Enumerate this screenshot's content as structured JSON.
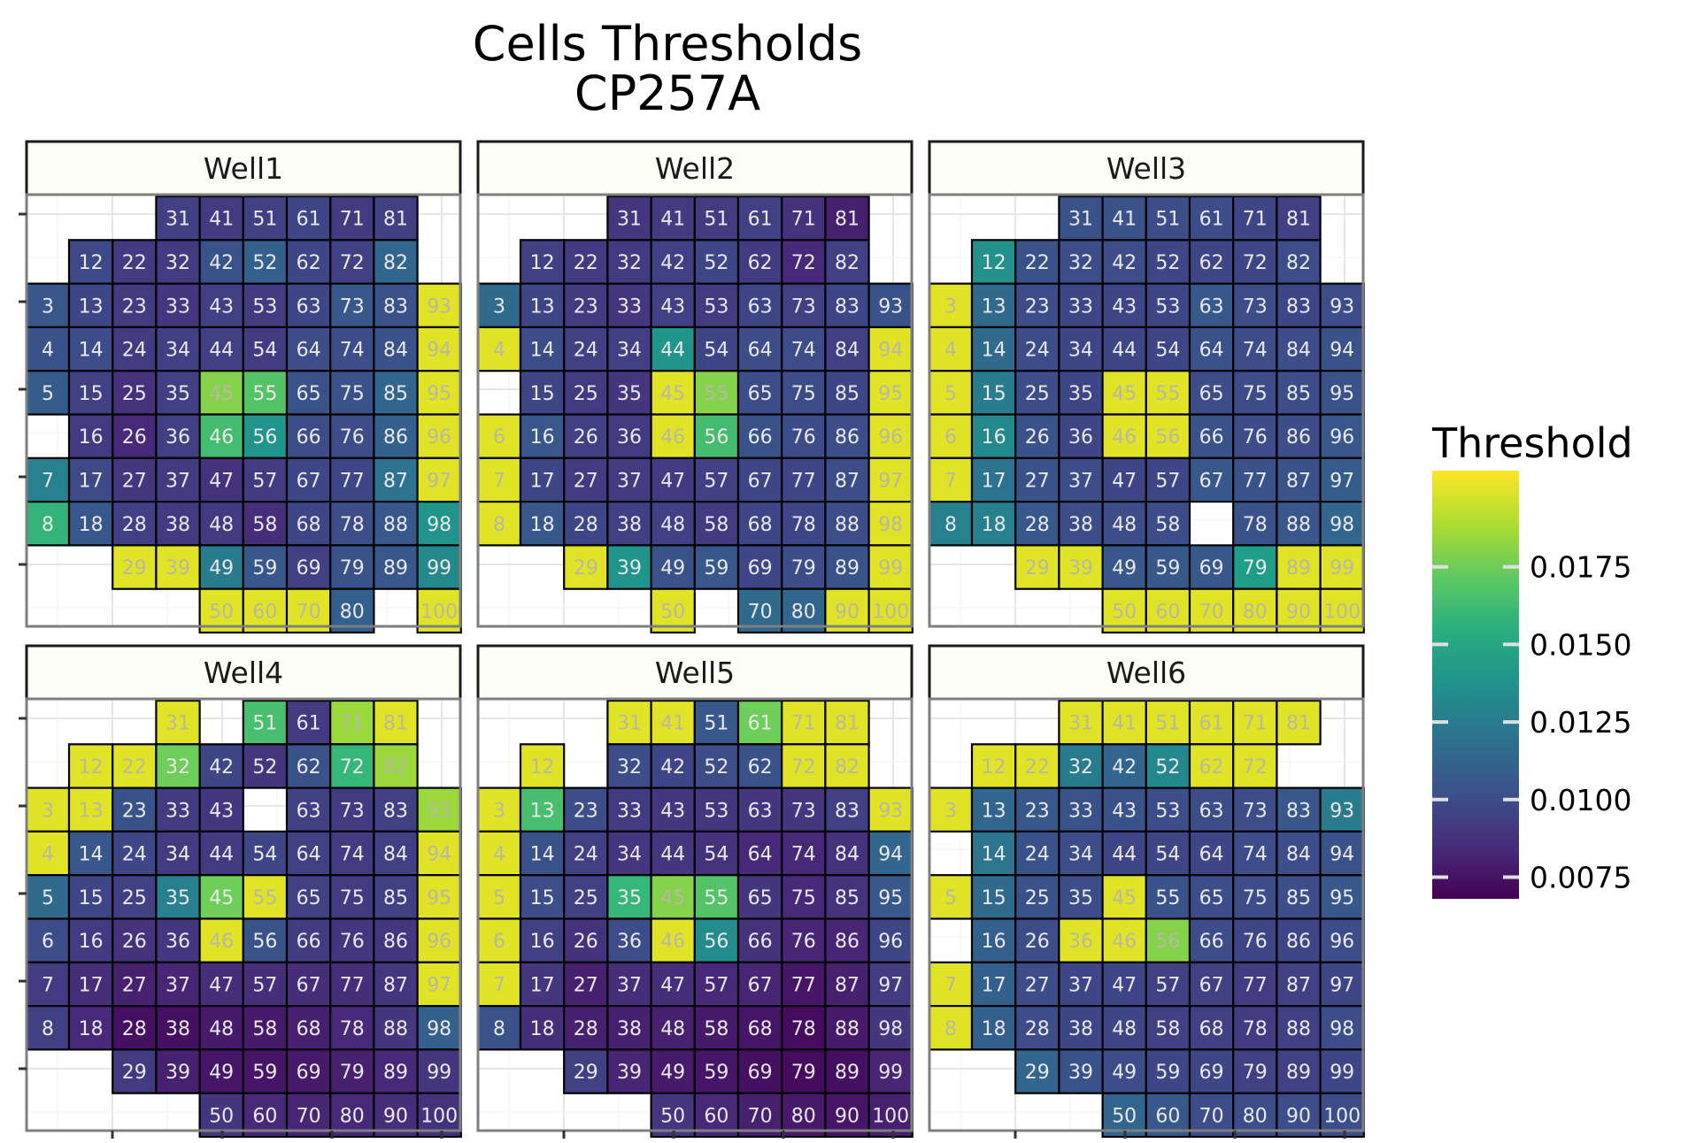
{
  "title_line1": "Cells Thresholds",
  "title_line2": "CP257A",
  "legend": {
    "title": "Threshold",
    "ticks": [
      "0.0175",
      "0.0150",
      "0.0125",
      "0.0100",
      "0.0075"
    ]
  },
  "chart_data": {
    "type": "heatmap",
    "title": "Cells Thresholds\nCP257A",
    "color_scale": "viridis",
    "color_range": [
      0.0068,
      0.0206
    ],
    "legend_title": "Threshold",
    "legend_ticks": [
      0.0075,
      0.01,
      0.0125,
      0.015,
      0.0175
    ],
    "x_range": [
      0,
      10
    ],
    "y_range": [
      1,
      10
    ],
    "facets": [
      {
        "name": "Well1",
        "rows": {
          "1": [
            null,
            0.0094,
            0.0092,
            0.0094,
            0.0097,
            0.0092,
            0.0094,
            null,
            null
          ],
          "2": [
            0.0098,
            0.0092,
            0.0092,
            0.0103,
            0.011,
            0.0097,
            0.0094,
            0.0113,
            null
          ],
          "3": [
            0.0106,
            0.0097,
            0.0092,
            0.009,
            0.0094,
            0.0092,
            0.0097,
            0.0106,
            0.0102,
            0.02
          ],
          "4": [
            0.0103,
            0.01,
            0.0092,
            0.0094,
            0.0094,
            0.0092,
            0.01,
            0.01,
            0.0103,
            0.02
          ],
          "5": [
            0.0108,
            0.0094,
            0.0088,
            0.0094,
            0.018,
            0.0168,
            0.0103,
            0.0103,
            0.0113,
            0.02
          ],
          "6": [
            null,
            0.0092,
            0.0084,
            0.0094,
            0.0164,
            0.014,
            0.01,
            0.01,
            0.011,
            0.02
          ],
          "7": [
            0.0128,
            0.0098,
            0.009,
            0.0092,
            0.0088,
            0.0092,
            0.0097,
            0.0097,
            0.012,
            0.02
          ],
          "8": [
            0.0158,
            0.0106,
            0.0094,
            0.0092,
            0.0092,
            0.0086,
            0.0097,
            0.01,
            0.0106,
            0.014
          ],
          "9": [
            null,
            0.02,
            0.02,
            0.0125,
            0.0106,
            0.0094,
            0.0103,
            0.0106,
            0.0133,
            null
          ],
          "10": [
            null,
            null,
            0.02,
            0.02,
            0.02,
            0.011,
            null,
            0.02,
            null,
            null
          ]
        }
      },
      {
        "name": "Well2",
        "rows": {
          "1": [
            null,
            0.009,
            0.0092,
            0.0092,
            0.0094,
            0.0088,
            0.008,
            null,
            null
          ],
          "2": [
            0.0094,
            0.0092,
            0.0092,
            0.0094,
            0.0097,
            0.0092,
            0.0084,
            0.0094,
            null
          ],
          "3": [
            0.0116,
            0.0097,
            0.0092,
            0.009,
            0.0094,
            0.0092,
            0.0097,
            0.0094,
            0.0097,
            0.0103
          ],
          "4": [
            0.02,
            0.01,
            0.0094,
            0.0094,
            0.014,
            0.0097,
            0.01,
            0.01,
            0.0094,
            0.02
          ],
          "5": [
            null,
            0.0097,
            0.0092,
            0.009,
            0.02,
            0.018,
            0.01,
            0.01,
            0.0097,
            0.02
          ],
          "6": [
            0.02,
            0.0106,
            0.0094,
            0.0092,
            0.02,
            0.0164,
            0.0103,
            0.01,
            0.01,
            0.02
          ],
          "7": [
            0.02,
            0.0097,
            0.0092,
            0.0092,
            0.0092,
            0.0094,
            0.0097,
            0.0097,
            0.01,
            0.02
          ],
          "8": [
            0.02,
            0.0106,
            0.0097,
            0.0094,
            0.0094,
            0.0092,
            0.0097,
            0.0097,
            0.01,
            0.02
          ],
          "9": [
            null,
            0.02,
            0.014,
            0.0103,
            0.0106,
            0.0097,
            0.01,
            0.0103,
            0.02,
            null
          ],
          "10": [
            null,
            null,
            0.02,
            null,
            0.0116,
            0.0113,
            0.02,
            0.02,
            null,
            null
          ]
        }
      },
      {
        "name": "Well3",
        "rows": {
          "1": [
            null,
            0.0103,
            0.0103,
            0.01,
            0.01,
            0.0097,
            0.0094,
            null,
            null
          ],
          "2": [
            0.0138,
            0.0103,
            0.01,
            0.01,
            0.0097,
            0.0097,
            0.0097,
            0.01,
            null
          ],
          "3": [
            0.02,
            0.0116,
            0.01,
            0.0097,
            0.0097,
            0.0097,
            0.0106,
            0.01,
            0.0097,
            0.01
          ],
          "4": [
            0.02,
            0.0116,
            0.01,
            0.0097,
            0.0097,
            0.0097,
            0.0103,
            0.01,
            0.01,
            0.0103
          ],
          "5": [
            0.02,
            0.0125,
            0.01,
            0.0097,
            0.02,
            0.02,
            0.01,
            0.01,
            0.01,
            0.0103
          ],
          "6": [
            0.02,
            0.0133,
            0.0103,
            0.0097,
            0.02,
            0.02,
            0.0103,
            0.01,
            0.01,
            0.0106
          ],
          "7": [
            0.02,
            0.012,
            0.0103,
            0.01,
            0.0097,
            0.0097,
            0.0106,
            0.0103,
            0.0103,
            0.0108
          ],
          "8": [
            0.0128,
            0.0128,
            0.0106,
            0.01,
            0.01,
            0.01,
            null,
            0.0103,
            0.0106,
            0.0113
          ],
          "9": [
            null,
            0.02,
            0.02,
            0.0106,
            0.0106,
            0.0106,
            0.0145,
            0.02,
            0.02,
            null
          ],
          "10": [
            null,
            null,
            0.02,
            0.02,
            0.02,
            0.02,
            0.02,
            0.02,
            null,
            null
          ]
        }
      },
      {
        "name": "Well4",
        "rows": {
          "1": [
            null,
            0.02,
            null,
            0.0165,
            0.0092,
            0.0185,
            0.02,
            null,
            null
          ],
          "2": [
            0.02,
            0.02,
            0.0175,
            0.0097,
            0.009,
            0.0103,
            0.016,
            0.0185,
            null
          ],
          "3": [
            0.02,
            0.02,
            0.0103,
            0.0092,
            0.009,
            null,
            0.0094,
            0.0092,
            0.0094,
            0.0185
          ],
          "4": [
            0.02,
            0.0106,
            0.0097,
            0.0092,
            0.0092,
            0.0097,
            0.0094,
            0.0092,
            0.0094,
            0.02
          ],
          "5": [
            0.0116,
            0.0097,
            0.0094,
            0.0128,
            0.0175,
            0.02,
            0.0094,
            0.0092,
            0.0094,
            0.02
          ],
          "6": [
            0.01,
            0.0092,
            0.0088,
            0.009,
            0.02,
            0.0103,
            0.0092,
            0.009,
            0.009,
            0.02
          ],
          "7": [
            0.0092,
            0.0086,
            0.008,
            0.0082,
            0.0086,
            0.0086,
            0.0086,
            0.0086,
            0.009,
            0.02
          ],
          "8": [
            0.0094,
            0.0084,
            0.0074,
            0.0074,
            0.0078,
            0.0078,
            0.008,
            0.0084,
            0.009,
            0.011
          ],
          "9": [
            null,
            0.0092,
            0.008,
            0.0076,
            0.0076,
            0.0078,
            0.008,
            0.0084,
            0.009,
            null
          ],
          "10": [
            null,
            null,
            0.009,
            0.0084,
            0.0082,
            0.0084,
            0.0086,
            0.0088,
            null,
            null
          ]
        }
      },
      {
        "name": "Well5",
        "rows": {
          "1": [
            null,
            0.02,
            0.02,
            0.0106,
            0.0175,
            0.02,
            0.02,
            null,
            null
          ],
          "2": [
            0.02,
            null,
            0.01,
            0.0097,
            0.01,
            0.0103,
            0.02,
            0.02,
            null
          ],
          "3": [
            0.02,
            0.0165,
            0.01,
            0.0092,
            0.009,
            0.009,
            0.009,
            0.009,
            0.0094,
            0.02
          ],
          "4": [
            0.02,
            0.0103,
            0.0094,
            0.009,
            0.009,
            0.0088,
            0.0084,
            0.0084,
            0.0088,
            0.0113
          ],
          "5": [
            0.02,
            0.01,
            0.0094,
            0.016,
            0.018,
            0.0168,
            0.009,
            0.0084,
            0.0088,
            0.0106
          ],
          "6": [
            0.02,
            0.0094,
            0.0088,
            0.01,
            0.02,
            0.0135,
            0.0088,
            0.0082,
            0.0082,
            0.0097
          ],
          "7": [
            0.02,
            0.009,
            0.008,
            0.0086,
            0.0086,
            0.0084,
            0.0082,
            0.0076,
            0.008,
            0.0092
          ],
          "8": [
            0.0103,
            0.0086,
            0.008,
            0.008,
            0.008,
            0.0078,
            0.0076,
            0.0072,
            0.0078,
            0.009
          ],
          "9": [
            null,
            0.0094,
            0.0082,
            0.0078,
            0.0076,
            0.0074,
            0.0072,
            0.0074,
            0.0082,
            null
          ],
          "10": [
            null,
            null,
            0.009,
            0.0084,
            0.008,
            0.0078,
            0.0076,
            0.008,
            null,
            null
          ]
        }
      },
      {
        "name": "Well6",
        "rows": {
          "1": [
            null,
            0.02,
            0.02,
            0.02,
            0.02,
            0.02,
            0.02,
            null,
            null
          ],
          "2": [
            0.02,
            0.02,
            0.0125,
            0.0113,
            0.0133,
            0.02,
            0.02,
            null,
            null
          ],
          "3": [
            0.02,
            0.0113,
            0.0106,
            0.0103,
            0.0103,
            0.01,
            0.01,
            0.01,
            0.0106,
            0.0125
          ],
          "4": [
            null,
            0.0122,
            0.0103,
            0.01,
            0.0097,
            0.0097,
            0.0097,
            0.01,
            0.01,
            0.0103
          ],
          "5": [
            0.02,
            0.0116,
            0.0103,
            0.01,
            0.02,
            0.0103,
            0.01,
            0.01,
            0.01,
            0.0106
          ],
          "6": [
            null,
            0.011,
            0.01,
            0.02,
            0.02,
            0.018,
            0.01,
            0.0097,
            0.0097,
            0.01
          ],
          "7": [
            0.02,
            0.011,
            0.01,
            0.0097,
            0.0097,
            0.0094,
            0.0094,
            0.0092,
            0.0094,
            0.0097
          ],
          "8": [
            0.02,
            0.011,
            0.01,
            0.0097,
            0.0097,
            0.0094,
            0.0094,
            0.0092,
            0.0094,
            0.01
          ],
          "9": [
            null,
            0.0113,
            0.0103,
            0.01,
            0.0097,
            0.0097,
            0.0094,
            0.0094,
            0.0097,
            null
          ],
          "10": [
            null,
            null,
            0.0113,
            0.0106,
            0.01,
            0.01,
            0.01,
            0.01,
            null,
            null
          ]
        }
      }
    ]
  }
}
